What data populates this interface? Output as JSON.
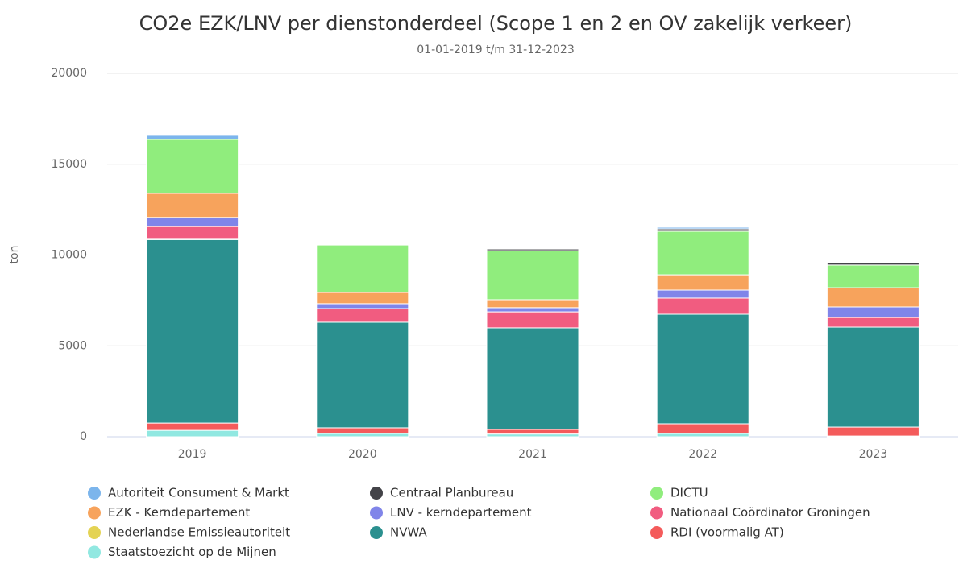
{
  "chart_data": {
    "type": "stacked_bar",
    "title": "CO2e EZK/LNV per dienstonderdeel (Scope 1 en 2 en OV zakelijk verkeer)",
    "subtitle": "01-01-2019 t/m 31-12-2023",
    "y_label": "ton",
    "categories": [
      "2019",
      "2020",
      "2021",
      "2022",
      "2023"
    ],
    "ylim": [
      0,
      20000
    ],
    "yticks": [
      0,
      5000,
      10000,
      15000,
      20000
    ],
    "grid": true,
    "series": [
      {
        "name": "Autoriteit Consument & Markt",
        "color": "#7cb5ec",
        "values": [
          220,
          0,
          0,
          90,
          0
        ]
      },
      {
        "name": "Centraal Planbureau",
        "color": "#434348",
        "values": [
          0,
          0,
          90,
          130,
          130
        ]
      },
      {
        "name": "DICTU",
        "color": "#90ed7d",
        "values": [
          2970,
          2610,
          2700,
          2400,
          1250
        ]
      },
      {
        "name": "EZK - Kerndepartement",
        "color": "#f7a35c",
        "values": [
          1330,
          620,
          440,
          840,
          1060
        ]
      },
      {
        "name": "LNV - kerndepartement",
        "color": "#8085e9",
        "values": [
          500,
          270,
          230,
          440,
          580
        ]
      },
      {
        "name": "Nationaal Coördinator Groningen",
        "color": "#f15c80",
        "values": [
          700,
          750,
          880,
          890,
          530
        ]
      },
      {
        "name": "Nederlandse Emissieautoriteit",
        "color": "#e4d354",
        "values": [
          20,
          0,
          0,
          0,
          0
        ]
      },
      {
        "name": "NVWA",
        "color": "#2b908f",
        "values": [
          10100,
          5810,
          5590,
          6030,
          5500
        ]
      },
      {
        "name": "RDI (voormalig AT)",
        "color": "#f45b5b",
        "values": [
          400,
          310,
          250,
          530,
          490
        ]
      },
      {
        "name": "Staatstoezicht op de Mijnen",
        "color": "#91e8e1",
        "values": [
          350,
          180,
          150,
          180,
          40
        ]
      }
    ]
  }
}
